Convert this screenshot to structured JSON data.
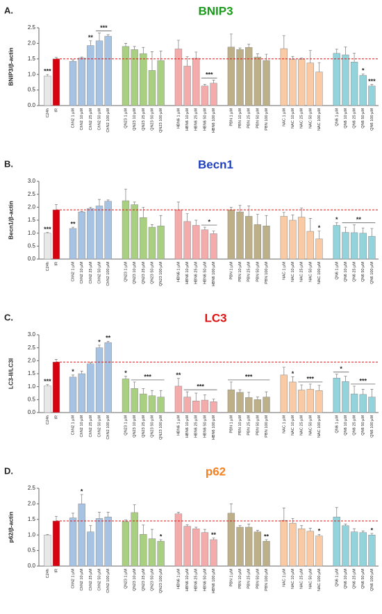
{
  "chart_data": [
    {
      "type": "bar",
      "letter": "A.",
      "title": "BNIP3",
      "title_color": "#1a9a1a",
      "ylabel": "BNIP3/β-actin",
      "categories": [
        "C24h",
        "IR",
        "ChN2 1 µM",
        "ChN2 10 µM",
        "ChN2 25 µM",
        "ChN2 50 µM",
        "ChN2 100 µM",
        "QN23 1 µM",
        "QN23 10 µM",
        "QN23 25 µM",
        "QN23 50 µM",
        "QN23 100 µM",
        "HBN6 1 µM",
        "HBN6 10 µM",
        "HBN6 25 µM",
        "HBN6 50 µM",
        "HBN6 100 µM",
        "PBN 1 µM",
        "PBN 10 µM",
        "PBN 25 µM",
        "PBN 50 µM",
        "PBN 100 µM",
        "NAC 1 µM",
        "NAC 10 µM",
        "NAC 25 µM",
        "NAC 50 µM",
        "NAC 100 µM",
        "QN6 1 µM",
        "QN6 10 µM",
        "QN6 25 µM",
        "QN6 50 µM",
        "QN6 100 µM"
      ],
      "values": [
        0.95,
        1.5,
        1.42,
        1.53,
        1.93,
        2.08,
        2.23,
        1.9,
        1.8,
        1.67,
        1.13,
        1.45,
        1.82,
        1.27,
        1.52,
        0.63,
        0.72,
        1.88,
        1.8,
        1.87,
        1.56,
        1.45,
        1.83,
        1.48,
        1.48,
        1.37,
        1.08,
        1.68,
        1.63,
        1.4,
        0.97,
        0.63
      ],
      "errors": [
        0.05,
        0.05,
        0.05,
        0.03,
        0.15,
        0.25,
        0.05,
        0.1,
        0.1,
        0.2,
        0.6,
        0.3,
        0.28,
        0.3,
        0.2,
        0.05,
        0.1,
        0.42,
        0.05,
        0.1,
        0.1,
        0.2,
        0.42,
        0.1,
        0.05,
        0.4,
        0.3,
        0.13,
        0.25,
        0.28,
        0.05,
        0.05
      ],
      "colors": [
        "#e8e8e8",
        "#d7000f",
        "#a7c3e3",
        "#a7c3e3",
        "#a7c3e3",
        "#a7c3e3",
        "#a7c3e3",
        "#a9cf80",
        "#a9cf80",
        "#a9cf80",
        "#a9cf80",
        "#a9cf80",
        "#f4abab",
        "#f4abab",
        "#f4abab",
        "#f4abab",
        "#f4abab",
        "#bdb088",
        "#bdb088",
        "#bdb088",
        "#bdb088",
        "#bdb088",
        "#f9caa3",
        "#f9caa3",
        "#f9caa3",
        "#f9caa3",
        "#f9caa3",
        "#92d3dc",
        "#92d3dc",
        "#92d3dc",
        "#92d3dc",
        "#92d3dc"
      ],
      "ref_line": 1.5,
      "ref_color": "#e01010",
      "ylim": [
        0,
        2.5
      ],
      "yticks": [
        {
          "value": 0,
          "label": "0.0"
        },
        0.5,
        {
          "value": 1,
          "label": "1.0"
        },
        1.5,
        {
          "value": 2,
          "label": "2.0"
        },
        2.5
      ],
      "significance": [
        {
          "label": "***",
          "bars": [
            0
          ]
        },
        {
          "label": "**",
          "bars": [
            4
          ]
        },
        {
          "label": "***",
          "bars": [
            5,
            6
          ]
        },
        {
          "label": "***",
          "bars": [
            15,
            16
          ]
        },
        {
          "label": "*",
          "bars": [
            30
          ]
        },
        {
          "label": "***",
          "bars": [
            31
          ]
        }
      ]
    },
    {
      "type": "bar",
      "letter": "B.",
      "title": "Becn1",
      "title_color": "#1f3fbf",
      "ylabel": "Becn1/β-actin",
      "categories": [
        "C24h",
        "IR",
        "ChN2 1 µM",
        "ChN2 10 µM",
        "ChN2 25 µM",
        "ChN2 50 µM",
        "ChN2 100 µM",
        "QN23 1 µM",
        "QN23 10 µM",
        "QN23 25 µM",
        "QN23 50 µM",
        "QN23 100 µM",
        "HBN6 1 µM",
        "HBN6 10 µM",
        "HBN6 25 µM",
        "HBN6 50 µM",
        "HBN6 100 µM",
        "PBN 1 µM",
        "PBN 10 µM",
        "PBN 25 µM",
        "PBN 50 µM",
        "PBN 100 µM",
        "NAC 1 µM",
        "NAC 10 µM",
        "NAC 25 µM",
        "NAC 50 µM",
        "NAC 100 µM",
        "QN6 1 µM",
        "QN6 10 µM",
        "QN6 25 µM",
        "QN6 50 µM",
        "QN6 100 µM"
      ],
      "values": [
        1.0,
        1.9,
        1.18,
        1.82,
        1.95,
        2.05,
        2.23,
        2.25,
        2.1,
        1.6,
        1.23,
        1.28,
        1.9,
        1.45,
        1.3,
        1.13,
        0.98,
        1.9,
        1.82,
        1.65,
        1.33,
        1.28,
        1.65,
        1.5,
        1.62,
        1.07,
        0.78,
        1.3,
        1.03,
        1.02,
        1.0,
        0.88
      ],
      "errors": [
        0.03,
        0.2,
        0.05,
        0.02,
        0.05,
        0.25,
        0.05,
        0.45,
        0.1,
        0.4,
        0.1,
        0.4,
        0.3,
        0.3,
        0.2,
        0.1,
        0.1,
        0.1,
        0.25,
        0.4,
        0.4,
        0.4,
        0.15,
        0.2,
        0.35,
        0.5,
        0.3,
        0.1,
        0.2,
        0.3,
        0.2,
        0.3
      ],
      "colors": [
        "#e8e8e8",
        "#d7000f",
        "#a7c3e3",
        "#a7c3e3",
        "#a7c3e3",
        "#a7c3e3",
        "#a7c3e3",
        "#a9cf80",
        "#a9cf80",
        "#a9cf80",
        "#a9cf80",
        "#a9cf80",
        "#f4abab",
        "#f4abab",
        "#f4abab",
        "#f4abab",
        "#f4abab",
        "#bdb088",
        "#bdb088",
        "#bdb088",
        "#bdb088",
        "#bdb088",
        "#f9caa3",
        "#f9caa3",
        "#f9caa3",
        "#f9caa3",
        "#f9caa3",
        "#92d3dc",
        "#92d3dc",
        "#92d3dc",
        "#92d3dc",
        "#92d3dc"
      ],
      "ref_line": 1.9,
      "ref_color": "#e01010",
      "ylim": [
        0,
        3
      ],
      "yticks": [
        {
          "value": 0,
          "label": "0.0"
        },
        0.5,
        {
          "value": 1,
          "label": "1.0"
        },
        1.5,
        {
          "value": 2,
          "label": "2.0"
        },
        2.5,
        {
          "value": 3,
          "label": "3.0"
        }
      ],
      "significance": [
        {
          "label": "***",
          "bars": [
            0
          ]
        },
        {
          "label": "**",
          "bars": [
            2
          ]
        },
        {
          "label": "*",
          "bars": [
            15,
            16
          ]
        },
        {
          "label": "*",
          "bars": [
            26
          ]
        },
        {
          "label": "*",
          "bars": [
            27
          ]
        },
        {
          "label": "**",
          "bars": [
            28,
            31
          ]
        }
      ]
    },
    {
      "type": "bar",
      "letter": "C.",
      "title": "LC3",
      "title_color": "#e01010",
      "ylabel": "LC3-II/LC3I",
      "categories": [
        "C24h",
        "IR",
        "ChN2 1 µM",
        "ChN2 10 µM",
        "ChN2 25 µM",
        "ChN2 50 µM",
        "ChN2 100 µM",
        "QN23 1 µM",
        "QN23 10 µM",
        "QN23 25 µM",
        "QN23 50 µM",
        "QN23 100 µM",
        "HBN6 1 µM",
        "HBN6 10 µM",
        "HBN6 25 µM",
        "HBN6 50 µM",
        "HBN6 100 µM",
        "PBN 1 µM",
        "PBN 10 µM",
        "PBN 25 µM",
        "PBN 50 µM",
        "PBN 100 µM",
        "NAC 1 µM",
        "NAC 10 µM",
        "NAC 25 µM",
        "NAC 50 µM",
        "NAC 100 µM",
        "QN6 1 µM",
        "QN6 10 µM",
        "QN6 25 µM",
        "QN6 50 µM",
        "QN6 100 µM"
      ],
      "values": [
        1.03,
        1.95,
        1.37,
        1.5,
        1.88,
        2.5,
        2.7,
        1.3,
        0.93,
        0.72,
        0.65,
        0.6,
        1.02,
        0.6,
        0.45,
        0.48,
        0.42,
        0.88,
        0.78,
        0.58,
        0.5,
        0.6,
        1.45,
        1.18,
        0.87,
        0.9,
        0.85,
        1.33,
        1.2,
        0.72,
        0.7,
        0.6
      ],
      "errors": [
        0.05,
        0.1,
        0.08,
        0.1,
        0.05,
        0.1,
        0.05,
        0.1,
        0.25,
        0.2,
        0.2,
        0.25,
        0.3,
        0.2,
        0.3,
        0.2,
        0.1,
        0.3,
        0.1,
        0.2,
        0.1,
        0.2,
        0.3,
        0.2,
        0.2,
        0.2,
        0.2,
        0.15,
        0.2,
        0.3,
        0.2,
        0.3
      ],
      "colors": [
        "#e8e8e8",
        "#d7000f",
        "#a7c3e3",
        "#a7c3e3",
        "#a7c3e3",
        "#a7c3e3",
        "#a7c3e3",
        "#a9cf80",
        "#a9cf80",
        "#a9cf80",
        "#a9cf80",
        "#a9cf80",
        "#f4abab",
        "#f4abab",
        "#f4abab",
        "#f4abab",
        "#f4abab",
        "#bdb088",
        "#bdb088",
        "#bdb088",
        "#bdb088",
        "#bdb088",
        "#f9caa3",
        "#f9caa3",
        "#f9caa3",
        "#f9caa3",
        "#f9caa3",
        "#92d3dc",
        "#92d3dc",
        "#92d3dc",
        "#92d3dc",
        "#92d3dc"
      ],
      "ref_line": 1.95,
      "ref_color": "#e01010",
      "ylim": [
        0,
        3
      ],
      "yticks": [
        {
          "value": 0,
          "label": "0.0"
        },
        0.5,
        {
          "value": 1,
          "label": "1.0"
        },
        1.5,
        {
          "value": 2,
          "label": "2.0"
        },
        2.5,
        {
          "value": 3,
          "label": "3.0"
        }
      ],
      "significance": [
        {
          "label": "***",
          "bars": [
            0
          ]
        },
        {
          "label": "*",
          "bars": [
            2
          ]
        },
        {
          "label": "*",
          "bars": [
            5
          ]
        },
        {
          "label": "**",
          "bars": [
            6
          ]
        },
        {
          "label": "*",
          "bars": [
            7
          ]
        },
        {
          "label": "***",
          "bars": [
            8,
            11
          ]
        },
        {
          "label": "**",
          "bars": [
            12
          ]
        },
        {
          "label": "***",
          "bars": [
            13,
            16
          ]
        },
        {
          "label": "***",
          "bars": [
            17,
            21
          ]
        },
        {
          "label": "*",
          "bars": [
            23
          ]
        },
        {
          "label": "***",
          "bars": [
            24,
            26
          ]
        },
        {
          "label": "*",
          "bars": [
            27,
            28
          ]
        },
        {
          "label": "***",
          "bars": [
            29,
            31
          ]
        }
      ]
    },
    {
      "type": "bar",
      "letter": "D.",
      "title": "p62",
      "title_color": "#f58220",
      "ylabel": "p62/β-actin",
      "categories": [
        "C24h",
        "IR",
        "ChN2 1 µM",
        "ChN2 10 µM",
        "ChN2 25 µM",
        "ChN2 50 µM",
        "ChN2 100 µM",
        "QN23 1 µM",
        "QN23 10 µM",
        "QN23 25 µM",
        "QN23 50 µM",
        "QN23 100 µM",
        "HBN6 1 µM",
        "HBN6 10 µM",
        "HBN6 25 µM",
        "HBN6 50 µM",
        "HBN6 100 µM",
        "PBN 1 µM",
        "PBN 10 µM",
        "PBN 25 µM",
        "PBN 50 µM",
        "PBN 100 µM",
        "NAC 1 µM",
        "NAC 10 µM",
        "NAC 25 µM",
        "NAC 50 µM",
        "NAC 100 µM",
        "QN6 1 µM",
        "QN6 10 µM",
        "QN6 25 µM",
        "QN6 50 µM",
        "QN6 100 µM"
      ],
      "values": [
        1.0,
        1.45,
        1.55,
        2.0,
        1.1,
        1.53,
        1.58,
        1.43,
        1.72,
        1.02,
        0.88,
        0.8,
        1.68,
        1.28,
        1.2,
        1.08,
        0.85,
        1.7,
        1.25,
        1.25,
        1.1,
        0.8,
        1.47,
        1.38,
        1.2,
        1.12,
        0.97,
        1.58,
        1.3,
        1.1,
        1.08,
        1.0
      ],
      "errors": [
        0.02,
        0.15,
        0.15,
        0.3,
        0.2,
        0.2,
        0.15,
        0.05,
        0.25,
        0.3,
        0.3,
        0.05,
        0.05,
        0.05,
        0.05,
        0.1,
        0.05,
        0.3,
        0.05,
        0.1,
        0.05,
        0.05,
        0.4,
        0.15,
        0.1,
        0.1,
        0.05,
        0.3,
        0.05,
        0.1,
        0.05,
        0.05
      ],
      "colors": [
        "#e8e8e8",
        "#d7000f",
        "#a7c3e3",
        "#a7c3e3",
        "#a7c3e3",
        "#a7c3e3",
        "#a7c3e3",
        "#a9cf80",
        "#a9cf80",
        "#a9cf80",
        "#a9cf80",
        "#a9cf80",
        "#f4abab",
        "#f4abab",
        "#f4abab",
        "#f4abab",
        "#f4abab",
        "#bdb088",
        "#bdb088",
        "#bdb088",
        "#bdb088",
        "#bdb088",
        "#f9caa3",
        "#f9caa3",
        "#f9caa3",
        "#f9caa3",
        "#f9caa3",
        "#92d3dc",
        "#92d3dc",
        "#92d3dc",
        "#92d3dc",
        "#92d3dc"
      ],
      "ref_line": 1.45,
      "ref_color": "#e01010",
      "ylim": [
        0,
        2.5
      ],
      "yticks": [
        {
          "value": 0,
          "label": "0.0"
        },
        0.5,
        {
          "value": 1,
          "label": "1.0"
        },
        1.5,
        {
          "value": 2,
          "label": "2.0"
        },
        2.5
      ],
      "significance": [
        {
          "label": "*",
          "bars": [
            3
          ]
        },
        {
          "label": "*",
          "bars": [
            11
          ]
        },
        {
          "label": "**",
          "bars": [
            16
          ]
        },
        {
          "label": "**",
          "bars": [
            21
          ]
        },
        {
          "label": "*",
          "bars": [
            26
          ]
        },
        {
          "label": "*",
          "bars": [
            31
          ]
        }
      ]
    }
  ]
}
